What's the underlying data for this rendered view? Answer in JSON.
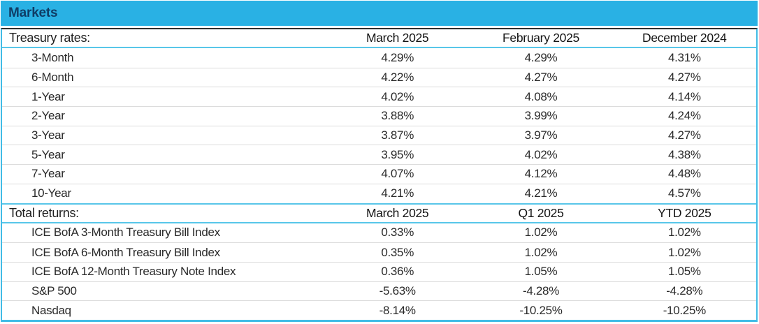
{
  "header": {
    "title": "Markets"
  },
  "colors": {
    "bar_cyan": "#29B1E4",
    "title_navy": "#0F3D66",
    "rule_cyan": "#58C6E9",
    "outer_border_cyan": "#41BCE6",
    "top_rule_dark": "#2E2E2E",
    "row_separator_gray": "#DCDCDC"
  },
  "chart_data": [
    {
      "type": "table",
      "title": "Treasury rates:",
      "columns": [
        "March 2025",
        "February 2025",
        "December 2024"
      ],
      "rows": [
        [
          "3-Month",
          "4.29%",
          "4.29%",
          "4.31%"
        ],
        [
          "6-Month",
          "4.22%",
          "4.27%",
          "4.27%"
        ],
        [
          "1-Year",
          "4.02%",
          "4.08%",
          "4.14%"
        ],
        [
          "2-Year",
          "3.88%",
          "3.99%",
          "4.24%"
        ],
        [
          "3-Year",
          "3.87%",
          "3.97%",
          "4.27%"
        ],
        [
          "5-Year",
          "3.95%",
          "4.02%",
          "4.38%"
        ],
        [
          "7-Year",
          "4.07%",
          "4.12%",
          "4.48%"
        ],
        [
          "10-Year",
          "4.21%",
          "4.21%",
          "4.57%"
        ]
      ]
    },
    {
      "type": "table",
      "title": "Total returns:",
      "columns": [
        "March 2025",
        "Q1 2025",
        "YTD 2025"
      ],
      "rows": [
        [
          "ICE BofA 3-Month Treasury Bill Index",
          "0.33%",
          "1.02%",
          "1.02%"
        ],
        [
          "ICE BofA 6-Month Treasury Bill Index",
          "0.35%",
          "1.02%",
          "1.02%"
        ],
        [
          "ICE BofA 12-Month Treasury Note Index",
          "0.36%",
          "1.05%",
          "1.05%"
        ],
        [
          "S&P 500",
          "-5.63%",
          "-4.28%",
          "-4.28%"
        ],
        [
          "Nasdaq",
          "-8.14%",
          "-10.25%",
          "-10.25%"
        ]
      ]
    }
  ]
}
